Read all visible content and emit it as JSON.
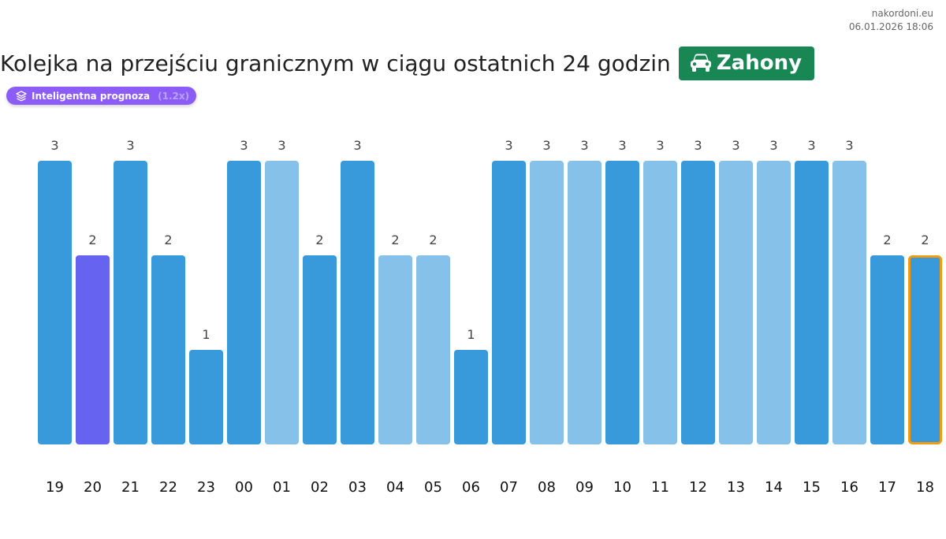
{
  "source": {
    "site": "nakordoni.eu",
    "timestamp": "06.01.2026 18:06"
  },
  "header": {
    "title": "Kolejka na przejściu granicznym w ciągu ostatnich 24 godzin",
    "crossing": "Zahony",
    "crossing_icon": "car-icon"
  },
  "prognosis_badge": {
    "label": "Inteligentna prognoza",
    "extra": "(1.2x)",
    "icon": "layers-icon",
    "color": "#8b5cf6"
  },
  "colors": {
    "dark": "#3899db",
    "light": "#85c1e9",
    "purple": "#6763f1",
    "highlight_border": "#f39c12"
  },
  "chart_data": {
    "type": "bar",
    "categories": [
      "19",
      "20",
      "21",
      "22",
      "23",
      "00",
      "01",
      "02",
      "03",
      "04",
      "05",
      "06",
      "07",
      "08",
      "09",
      "10",
      "11",
      "12",
      "13",
      "14",
      "15",
      "16",
      "17",
      "18"
    ],
    "values": [
      3,
      2,
      3,
      2,
      1,
      3,
      3,
      2,
      3,
      2,
      2,
      1,
      3,
      3,
      3,
      3,
      3,
      3,
      3,
      3,
      3,
      3,
      2,
      2
    ],
    "bar_styles": [
      "dark",
      "purple",
      "dark",
      "dark",
      "dark",
      "dark",
      "light",
      "dark",
      "dark",
      "light",
      "light",
      "dark",
      "dark",
      "light",
      "light",
      "dark",
      "light",
      "dark",
      "light",
      "light",
      "dark",
      "light",
      "dark",
      "dark"
    ],
    "highlighted_index": 23,
    "ylim": [
      0,
      3
    ],
    "grid": false,
    "xlabel": "",
    "ylabel": ""
  }
}
